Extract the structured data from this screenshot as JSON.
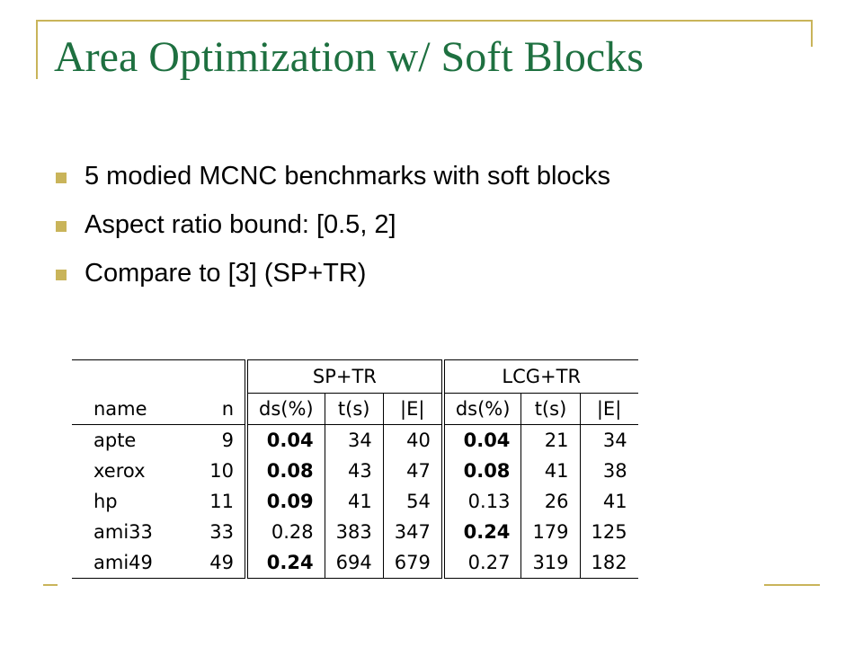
{
  "slide": {
    "title": "Area Optimization w/ Soft Blocks",
    "bullets": [
      "5 modied MCNC benchmarks with soft blocks",
      "Aspect ratio bound: [0.5, 2]",
      "Compare to [3] (SP+TR)"
    ]
  },
  "table": {
    "group_headers": [
      "SP+TR",
      "LCG+TR"
    ],
    "col_headers": [
      "name",
      "n",
      "ds(%)",
      "t(s)",
      "|E|",
      "ds(%)",
      "t(s)",
      "|E|"
    ],
    "rows": [
      [
        "apte",
        "9",
        "0.04",
        "34",
        "40",
        "0.04",
        "21",
        "34"
      ],
      [
        "xerox",
        "10",
        "0.08",
        "43",
        "47",
        "0.08",
        "41",
        "38"
      ],
      [
        "hp",
        "11",
        "0.09",
        "41",
        "54",
        "0.13",
        "26",
        "41"
      ],
      [
        "ami33",
        "33",
        "0.28",
        "383",
        "347",
        "0.24",
        "179",
        "125"
      ],
      [
        "ami49",
        "49",
        "0.24",
        "694",
        "679",
        "0.27",
        "319",
        "182"
      ]
    ],
    "bold_cells": [
      [
        0,
        2
      ],
      [
        0,
        5
      ],
      [
        1,
        2
      ],
      [
        1,
        5
      ],
      [
        2,
        2
      ],
      [
        3,
        5
      ],
      [
        4,
        2
      ]
    ]
  },
  "colors": {
    "title": "#1e7040",
    "accent": "#c9b45a"
  }
}
